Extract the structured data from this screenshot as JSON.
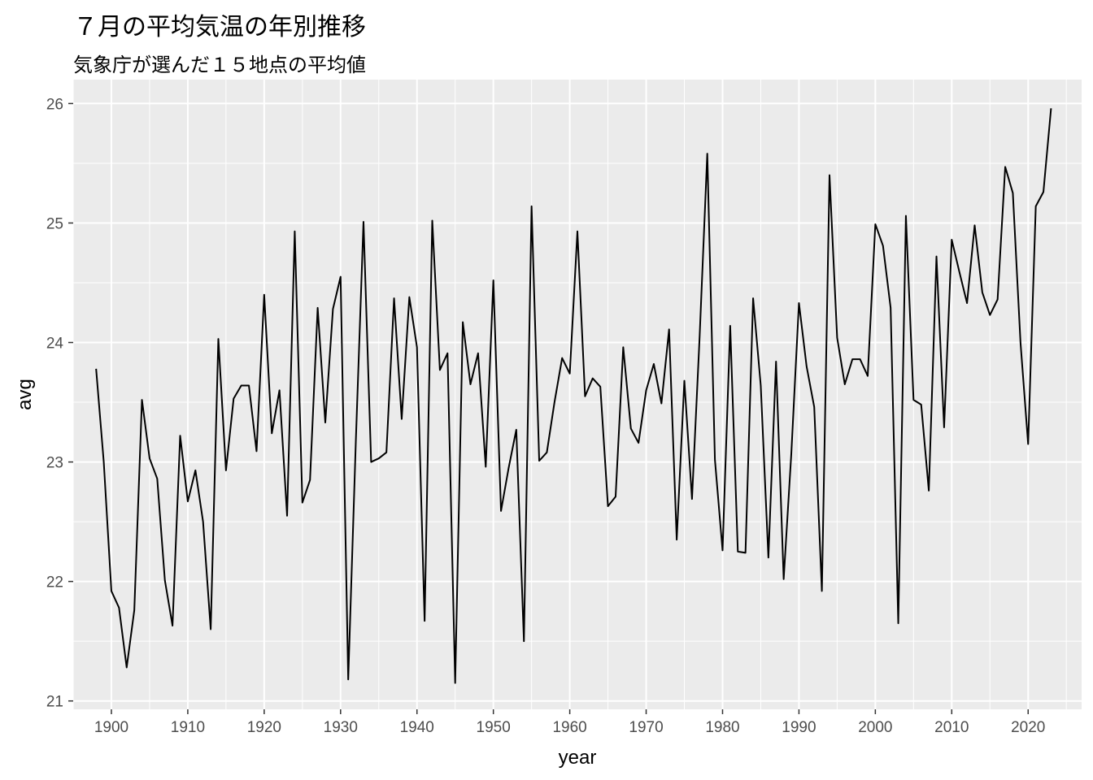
{
  "title": "７月の平均気温の年別推移",
  "subtitle": "気象庁が選んだ１５地点の平均値",
  "chart_data": {
    "type": "line",
    "xlabel": "year",
    "ylabel": "avg",
    "xlim": [
      1895,
      2027
    ],
    "ylim": [
      20.93,
      26.2
    ],
    "x_ticks": [
      1900,
      1910,
      1920,
      1930,
      1940,
      1950,
      1960,
      1970,
      1980,
      1990,
      2000,
      2010,
      2020
    ],
    "y_ticks": [
      21,
      22,
      23,
      24,
      25,
      26
    ],
    "grid": true,
    "colors": {
      "panel": "#ebebeb",
      "grid": "#ffffff",
      "line": "#000000"
    },
    "series": [
      {
        "x": [
          1898,
          1899,
          1900,
          1901,
          1902,
          1903,
          1904,
          1905,
          1906,
          1907,
          1908,
          1909,
          1910,
          1911,
          1912,
          1913,
          1914,
          1915,
          1916,
          1917,
          1918,
          1919,
          1920,
          1921,
          1922,
          1923,
          1924,
          1925,
          1926,
          1927,
          1928,
          1929,
          1930,
          1931,
          1932,
          1933,
          1934,
          1935,
          1936,
          1937,
          1938,
          1939,
          1940,
          1941,
          1942,
          1943,
          1944,
          1945,
          1946,
          1947,
          1948,
          1949,
          1950,
          1951,
          1952,
          1953,
          1954,
          1955,
          1956,
          1957,
          1958,
          1959,
          1960,
          1961,
          1962,
          1963,
          1964,
          1965,
          1966,
          1967,
          1968,
          1969,
          1970,
          1971,
          1972,
          1973,
          1974,
          1975,
          1976,
          1977,
          1978,
          1979,
          1980,
          1981,
          1982,
          1983,
          1984,
          1985,
          1986,
          1987,
          1988,
          1989,
          1990,
          1991,
          1992,
          1993,
          1994,
          1995,
          1996,
          1997,
          1998,
          1999,
          2000,
          2001,
          2002,
          2003,
          2004,
          2005,
          2006,
          2007,
          2008,
          2009,
          2010,
          2011,
          2012,
          2013,
          2014,
          2015,
          2016,
          2017,
          2018,
          2019,
          2020,
          2021,
          2022,
          2023
        ],
        "y": [
          23.78,
          23.0,
          21.92,
          21.78,
          21.28,
          21.76,
          23.52,
          23.03,
          22.86,
          22.01,
          21.63,
          23.22,
          22.67,
          22.93,
          22.5,
          21.6,
          24.03,
          22.93,
          23.53,
          23.64,
          23.64,
          23.09,
          24.4,
          23.24,
          23.6,
          22.55,
          24.93,
          22.66,
          22.85,
          24.29,
          23.33,
          24.28,
          24.55,
          21.18,
          23.18,
          25.01,
          23.0,
          23.03,
          23.08,
          24.37,
          23.36,
          24.38,
          23.96,
          21.67,
          25.02,
          23.77,
          23.91,
          21.15,
          24.17,
          23.65,
          23.91,
          22.96,
          24.52,
          22.59,
          22.95,
          23.27,
          21.5,
          25.14,
          23.01,
          23.08,
          23.5,
          23.87,
          23.74,
          24.93,
          23.55,
          23.7,
          23.63,
          22.63,
          22.71,
          23.96,
          23.28,
          23.16,
          23.6,
          23.82,
          23.49,
          24.11,
          22.35,
          23.68,
          22.69,
          24.05,
          25.58,
          23.02,
          22.26,
          24.14,
          22.25,
          22.24,
          24.37,
          23.64,
          22.2,
          23.84,
          22.02,
          23.07,
          24.33,
          23.8,
          23.46,
          21.92,
          25.4,
          24.04,
          23.65,
          23.86,
          23.86,
          23.72,
          24.99,
          24.81,
          24.29,
          21.65,
          25.06,
          23.52,
          23.48,
          22.76,
          24.72,
          23.29,
          24.86,
          24.59,
          24.33,
          24.98,
          24.42,
          24.23,
          24.36,
          25.47,
          25.25,
          24.0,
          23.15,
          25.14,
          25.26,
          25.96
        ]
      }
    ]
  }
}
